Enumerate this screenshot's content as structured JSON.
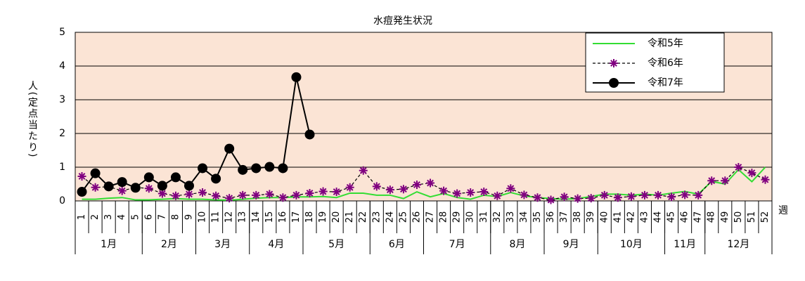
{
  "chart_data": {
    "type": "line",
    "title": "水痘発生状況",
    "y_label": "人(定点当たり)",
    "x_label": "週",
    "categories": [
      "1",
      "2",
      "3",
      "4",
      "5",
      "6",
      "7",
      "8",
      "9",
      "10",
      "11",
      "12",
      "13",
      "14",
      "15",
      "16",
      "17",
      "18",
      "19",
      "20",
      "21",
      "22",
      "23",
      "24",
      "25",
      "26",
      "27",
      "28",
      "29",
      "30",
      "31",
      "32",
      "33",
      "34",
      "35",
      "36",
      "37",
      "38",
      "39",
      "40",
      "41",
      "42",
      "43",
      "44",
      "45",
      "46",
      "47",
      "48",
      "49",
      "50",
      "51",
      "52"
    ],
    "groups": [
      {
        "label": "1月",
        "count": 5
      },
      {
        "label": "2月",
        "count": 4
      },
      {
        "label": "3月",
        "count": 4
      },
      {
        "label": "4月",
        "count": 4
      },
      {
        "label": "5月",
        "count": 5
      },
      {
        "label": "6月",
        "count": 4
      },
      {
        "label": "7月",
        "count": 5
      },
      {
        "label": "8月",
        "count": 4
      },
      {
        "label": "9月",
        "count": 4
      },
      {
        "label": "10月",
        "count": 5
      },
      {
        "label": "11月",
        "count": 3
      },
      {
        "label": "12月",
        "count": 5
      }
    ],
    "series": [
      {
        "name": "令和5年",
        "color": "#33dd33",
        "marker": "none",
        "dash": false,
        "values": [
          0.05,
          0.05,
          0.08,
          0.1,
          0.03,
          0.03,
          0.05,
          0.07,
          0.05,
          0.05,
          0.03,
          0.02,
          0.05,
          0.08,
          0.1,
          0.1,
          0.12,
          0.12,
          0.13,
          0.1,
          0.23,
          0.23,
          0.17,
          0.17,
          0.07,
          0.27,
          0.12,
          0.22,
          0.1,
          0.05,
          0.17,
          0.13,
          0.25,
          0.15,
          0.1,
          0.07,
          0.05,
          0.07,
          0.13,
          0.2,
          0.2,
          0.17,
          0.2,
          0.17,
          0.23,
          0.28,
          0.2,
          0.58,
          0.5,
          0.93,
          0.57,
          1.0
        ]
      },
      {
        "name": "令和6年",
        "color": "#800080",
        "marker": "star",
        "dash": true,
        "values": [
          0.73,
          0.4,
          0.42,
          0.3,
          0.4,
          0.37,
          0.22,
          0.15,
          0.2,
          0.25,
          0.15,
          0.08,
          0.17,
          0.17,
          0.2,
          0.1,
          0.17,
          0.23,
          0.28,
          0.27,
          0.4,
          0.9,
          0.43,
          0.33,
          0.35,
          0.48,
          0.53,
          0.3,
          0.22,
          0.25,
          0.27,
          0.15,
          0.37,
          0.18,
          0.1,
          0.03,
          0.12,
          0.07,
          0.08,
          0.17,
          0.1,
          0.13,
          0.17,
          0.17,
          0.12,
          0.18,
          0.17,
          0.6,
          0.6,
          1.0,
          0.83,
          0.63
        ]
      },
      {
        "name": "令和7年",
        "color": "#000000",
        "marker": "circle",
        "dash": false,
        "values": [
          0.27,
          0.82,
          0.43,
          0.56,
          0.39,
          0.7,
          0.45,
          0.7,
          0.45,
          0.97,
          0.66,
          1.55,
          0.92,
          0.97,
          1.01,
          0.97,
          3.67,
          1.97,
          null,
          null,
          null,
          null,
          null,
          null,
          null,
          null,
          null,
          null,
          null,
          null,
          null,
          null,
          null,
          null,
          null,
          null,
          null,
          null,
          null,
          null,
          null,
          null,
          null,
          null,
          null,
          null,
          null,
          null,
          null,
          null,
          null,
          null
        ]
      }
    ],
    "ylim": [
      0,
      5
    ],
    "yticks": [
      0,
      1,
      2,
      3,
      4,
      5
    ],
    "grid": true,
    "legend": "top-right",
    "plot_background": "#fbe4d5"
  }
}
